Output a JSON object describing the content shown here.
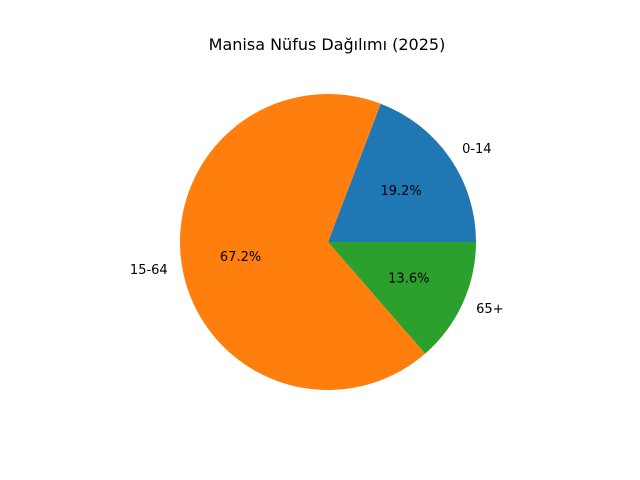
{
  "chart_data": {
    "type": "pie",
    "title": "Manisa Nüfus Dağılımı (2025)",
    "categories": [
      "0-14",
      "15-64",
      "65+"
    ],
    "values": [
      19.2,
      67.2,
      13.6
    ],
    "percent_labels": [
      "19.2%",
      "67.2%",
      "13.6%"
    ],
    "colors": [
      "#1f77b4",
      "#ff7f0e",
      "#2ca02c"
    ],
    "start_angle_deg": 0,
    "direction": "counterclockwise",
    "legend": "none"
  }
}
